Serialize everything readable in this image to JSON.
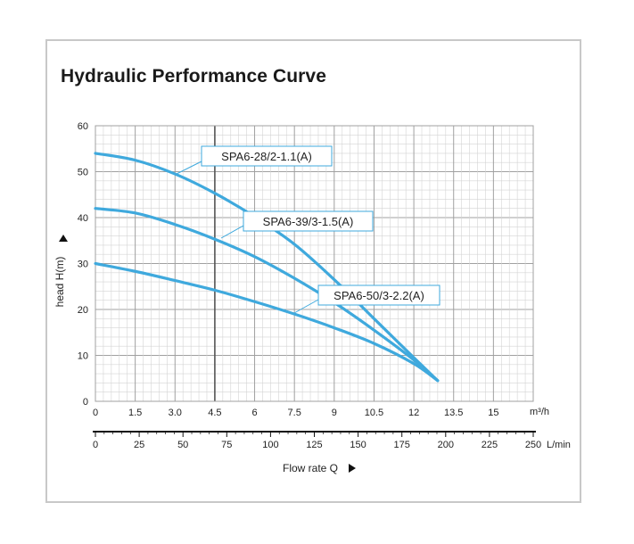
{
  "chart_data": {
    "type": "line",
    "title": "Hydraulic Performance Curve",
    "xlabel": "Flow rate Q",
    "ylabel": "head H(m)",
    "x_unit": "m³/h",
    "x2_unit": "L/min",
    "xlim": [
      0,
      16.5
    ],
    "ylim": [
      0,
      60
    ],
    "x_ticks": [
      "0",
      "1.5",
      "3.0",
      "4.5",
      "6",
      "7.5",
      "9",
      "10.5",
      "12",
      "13.5",
      "15"
    ],
    "y_ticks": [
      "0",
      "10",
      "20",
      "30",
      "40",
      "50",
      "60"
    ],
    "x2_ticks": [
      "0",
      "25",
      "50",
      "75",
      "100",
      "125",
      "150",
      "175",
      "200",
      "225",
      "250"
    ],
    "grid": true,
    "series": [
      {
        "name": "SPA6-28/2-1.1(A)",
        "x": [
          0,
          1.5,
          3,
          4.5,
          6,
          7.5,
          9,
          10.5,
          12,
          12.9
        ],
        "y": [
          54,
          52.5,
          49.5,
          45.3,
          40.2,
          34.2,
          26.5,
          18,
          9.5,
          4.5
        ]
      },
      {
        "name": "SPA6-39/3-1.5(A)",
        "x": [
          0,
          1.5,
          3,
          4.5,
          6,
          7.5,
          9,
          10.5,
          12,
          12.9
        ],
        "y": [
          42,
          41,
          38.5,
          35.3,
          31.5,
          26.8,
          21.5,
          15.5,
          9,
          4.5
        ]
      },
      {
        "name": "SPA6-50/3-2.2(A)",
        "x": [
          0,
          1.5,
          3,
          4.5,
          6,
          7.5,
          9,
          10.5,
          12,
          12.9
        ],
        "y": [
          30,
          28.3,
          26.3,
          24.2,
          21.7,
          19,
          16,
          12.6,
          8.2,
          4.5
        ]
      }
    ],
    "annotations": [
      {
        "text": "SPA6-28/2-1.1(A)",
        "series": 0
      },
      {
        "text": "SPA6-39/3-1.5(A)",
        "series": 1
      },
      {
        "text": "SPA6-50/3-2.2(A)",
        "series": 2
      }
    ],
    "colors": {
      "curve": "#3fa9dd",
      "grid_minor": "#d4d4d4",
      "grid_major": "#a0a0a0",
      "grid_bold": "#555555"
    }
  }
}
